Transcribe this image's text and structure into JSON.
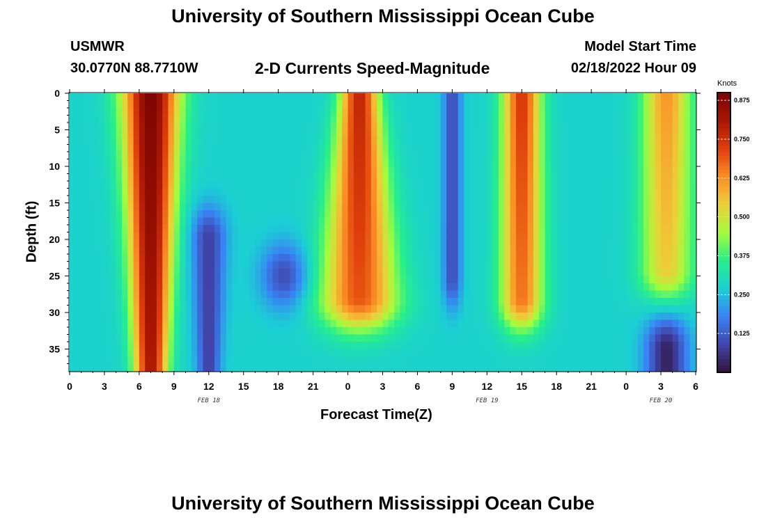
{
  "header": {
    "title": "University of Southern Mississippi Ocean Cube",
    "station_name": "USMWR",
    "station_coords": "30.0770N  88.7710W",
    "subtitle": "2-D Currents Speed-Magnitude",
    "model_start_label": "Model Start Time",
    "model_start_value": "02/18/2022 Hour 09"
  },
  "footer": {
    "repeated_title": "University of Southern Mississippi Ocean Cube"
  },
  "chart_data": {
    "type": "heatmap",
    "title": "2-D Currents Speed-Magnitude",
    "xlabel": "Forecast Time(Z)",
    "ylabel": "Depth (ft)",
    "x_start_hour": 0,
    "x_end_hour": 54,
    "x_tick_labels": [
      "0",
      "3",
      "6",
      "9",
      "12",
      "15",
      "18",
      "21",
      "0",
      "3",
      "6",
      "9",
      "12",
      "15",
      "18",
      "21",
      "0",
      "3",
      "6"
    ],
    "date_labels": [
      {
        "text": "FEB 18",
        "hour": 12
      },
      {
        "text": "FEB 19",
        "hour": 36
      },
      {
        "text": "FEB 20",
        "hour": 51
      }
    ],
    "y_ticks": [
      0,
      5,
      10,
      15,
      20,
      25,
      30,
      35
    ],
    "ylim": [
      0,
      38
    ],
    "y_inverted": true,
    "colorbar": {
      "unit": "Knots",
      "range": [
        0.0,
        0.9
      ],
      "tick_values": [
        0.125,
        0.25,
        0.375,
        0.5,
        0.625,
        0.75,
        0.875
      ],
      "tick_labels": [
        "0.125",
        "0.250",
        "0.375",
        "0.500",
        "0.625",
        "0.750",
        "0.875"
      ],
      "colormap": "turbo"
    },
    "features": [
      {
        "kind": "max",
        "hour": 7,
        "depth_top": 0,
        "depth_bottom": 38,
        "width_top": 2.4,
        "width_bottom": 1.4,
        "peak": 0.9,
        "decay_depth": 60
      },
      {
        "kind": "max",
        "hour": 25,
        "depth_top": 0,
        "depth_bottom": 28,
        "width_top": 1.6,
        "width_bottom": 3.2,
        "peak": 0.78,
        "decay_depth": 40
      },
      {
        "kind": "max",
        "hour": 39,
        "depth_top": 0,
        "depth_bottom": 28,
        "width_top": 1.6,
        "width_bottom": 1.8,
        "peak": 0.74,
        "decay_depth": 40
      },
      {
        "kind": "max",
        "hour": 51.5,
        "depth_top": 0,
        "depth_bottom": 24,
        "width_top": 2.0,
        "width_bottom": 2.2,
        "peak": 0.62,
        "decay_depth": 30
      },
      {
        "kind": "min",
        "hour": 12,
        "depth_top": 20,
        "depth_bottom": 38,
        "width_top": 1.5,
        "width_bottom": 1.0,
        "trough": 0.08
      },
      {
        "kind": "min",
        "hour": 18.5,
        "depth_top": 25,
        "depth_bottom": 25,
        "width_top": 2.0,
        "width_bottom": 2.0,
        "trough": 0.1
      },
      {
        "kind": "min",
        "hour": 33,
        "depth_top": 0,
        "depth_bottom": 25,
        "width_top": 0.8,
        "width_bottom": 0.8,
        "trough": 0.1
      },
      {
        "kind": "min",
        "hour": 51.5,
        "depth_top": 35,
        "depth_bottom": 38,
        "width_top": 1.8,
        "width_bottom": 1.8,
        "trough": 0.03
      }
    ]
  }
}
